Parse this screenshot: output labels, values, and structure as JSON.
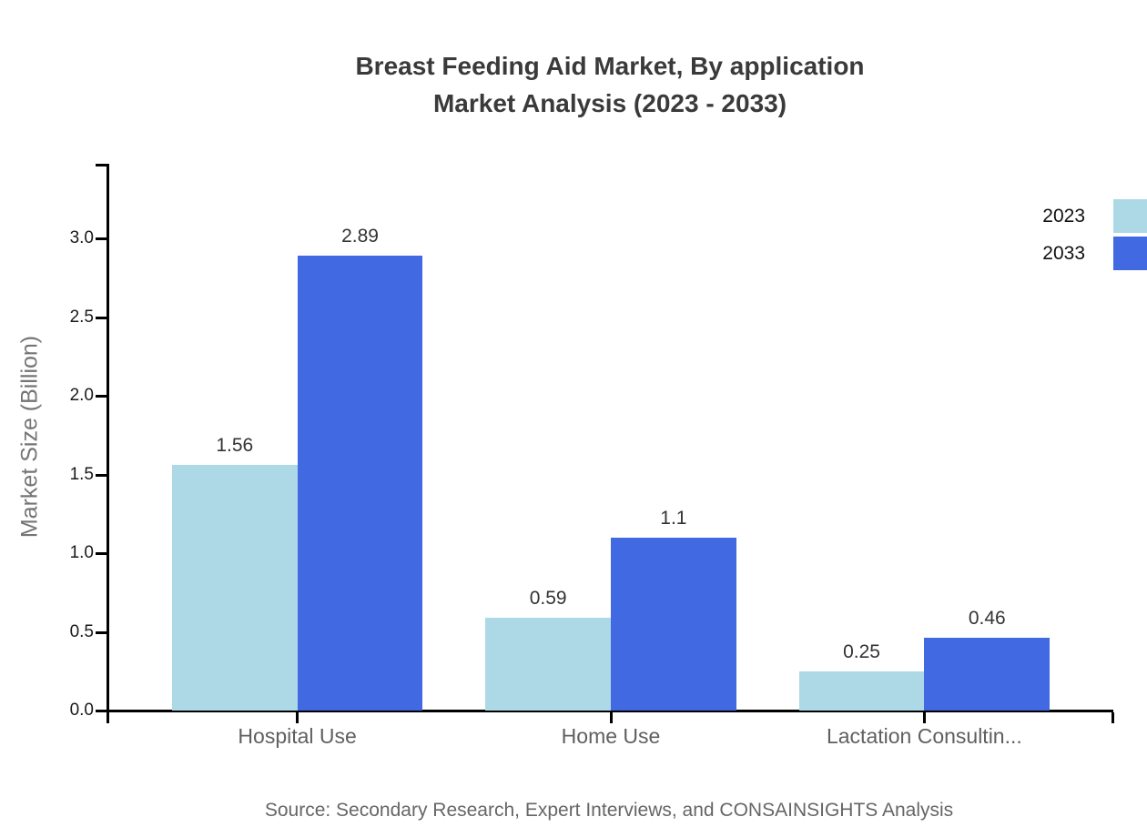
{
  "chart_data": {
    "type": "bar",
    "title": "Breast Feeding Aid Market, By application Market Analysis (2023 - 2033)",
    "title_lines": [
      "Breast Feeding Aid Market, By application",
      "Market Analysis (2023 - 2033)"
    ],
    "ylabel": "Market Size (Billion)",
    "categories": [
      "Hospital Use",
      "Home Use",
      "Lactation Consultin..."
    ],
    "series": [
      {
        "name": "2023",
        "color": "#add8e6",
        "values": [
          1.56,
          0.59,
          0.25
        ],
        "labels": [
          "1.56",
          "0.59",
          "0.25"
        ]
      },
      {
        "name": "2033",
        "color": "#4169e1",
        "values": [
          2.89,
          1.1,
          0.46
        ],
        "labels": [
          "2.89",
          "1.1",
          "0.46"
        ]
      }
    ],
    "yticks": [
      0.0,
      0.5,
      1.0,
      1.5,
      2.0,
      2.5,
      3.0
    ],
    "ytick_labels": [
      "0.0",
      "0.5",
      "1.0",
      "1.5",
      "2.0",
      "2.5",
      "3.0"
    ],
    "ylim": [
      0,
      3.47
    ],
    "grid": false,
    "legend_position": "top-right",
    "source": "Source: Secondary Research, Expert Interviews, and CONSAINSIGHTS Analysis"
  }
}
